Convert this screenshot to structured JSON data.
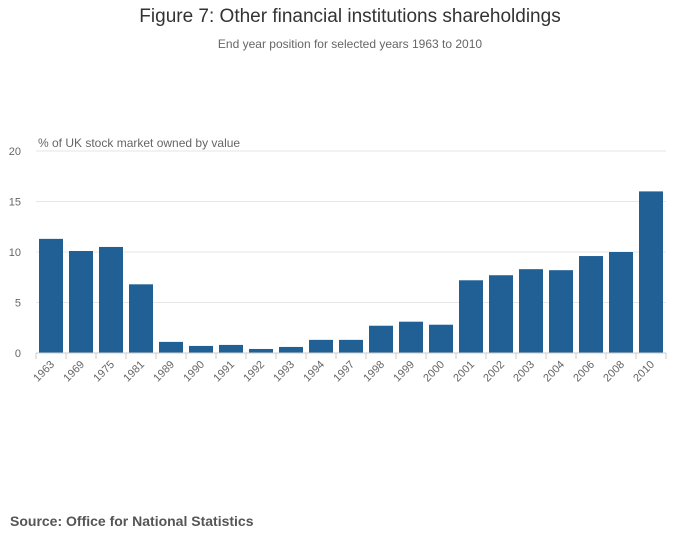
{
  "header": {
    "title": "Figure 7: Other financial institutions shareholdings",
    "subtitle": "End year position for selected years 1963 to 2010"
  },
  "footer": {
    "source": "Source: Office for National Statistics"
  },
  "colors": {
    "bar": "#206095",
    "grid": "#e6e6e6",
    "axis": "#cccccc",
    "text": "#666666"
  },
  "chart_data": {
    "type": "bar",
    "title": "Figure 7: Other financial institutions shareholdings",
    "subtitle": "End year position for selected years 1963 to 2010",
    "xlabel": "",
    "ylabel": "% of UK stock market owned by value",
    "ylim": [
      0,
      20
    ],
    "yticks": [
      0,
      5,
      10,
      15,
      20
    ],
    "grid": true,
    "legend": "none",
    "categories": [
      "1963",
      "1969",
      "1975",
      "1981",
      "1989",
      "1990",
      "1991",
      "1992",
      "1993",
      "1994",
      "1997",
      "1998",
      "1999",
      "2000",
      "2001",
      "2002",
      "2003",
      "2004",
      "2006",
      "2008",
      "2010"
    ],
    "series": [
      {
        "name": "Other financial institutions",
        "values": [
          11.3,
          10.1,
          10.5,
          6.8,
          1.1,
          0.7,
          0.8,
          0.4,
          0.6,
          1.3,
          1.3,
          2.7,
          3.1,
          2.8,
          7.2,
          7.7,
          8.3,
          8.2,
          9.6,
          10.0,
          16.0
        ]
      }
    ]
  }
}
